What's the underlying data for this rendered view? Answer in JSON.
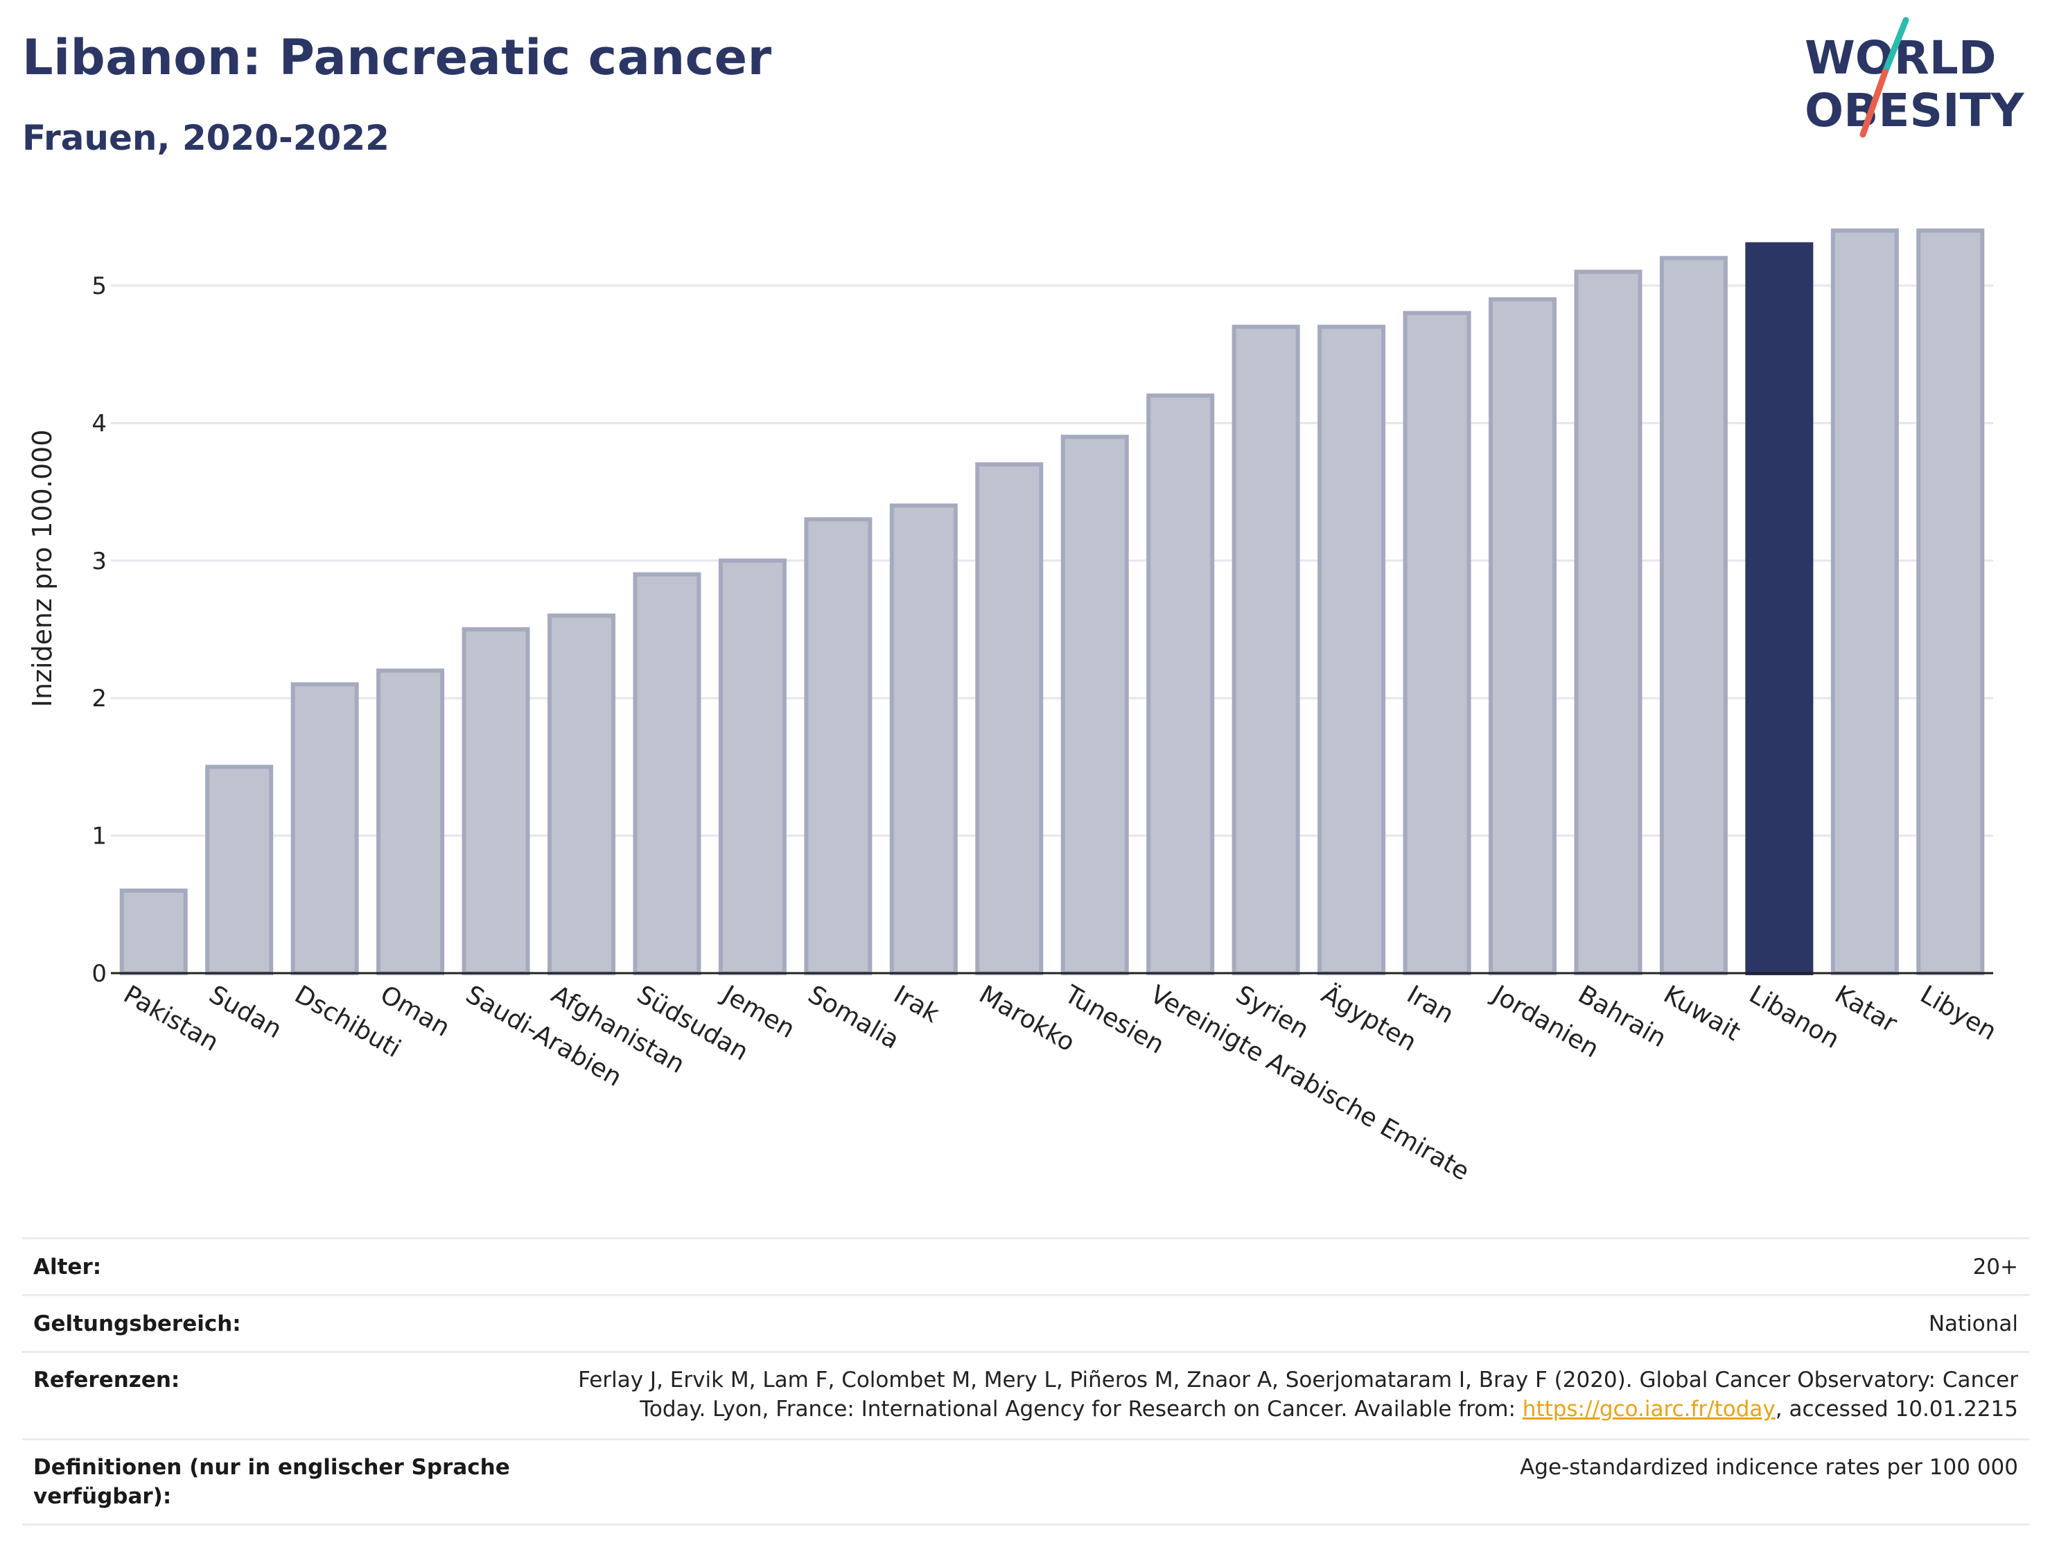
{
  "header": {
    "title": "Libanon: Pancreatic cancer",
    "subtitle": "Frauen, 2020-2022"
  },
  "logo": {
    "line1": "WORLD",
    "line2": "OBESITY",
    "colors": {
      "text": "#2b3664",
      "slash_top": "#2bbbad",
      "slash_bottom": "#e8604c"
    }
  },
  "colors": {
    "bar_fill": "#bfc2cf",
    "bar_stroke": "#a5aabf",
    "highlight": "#2b3664",
    "grid": "#e6e6ee",
    "axis": "#222222"
  },
  "chart_data": {
    "type": "bar",
    "ylabel": "Inzidenz pro 100.000",
    "ylim": [
      0,
      5.5
    ],
    "yticks": [
      0,
      1,
      2,
      3,
      4,
      5
    ],
    "grid": true,
    "highlight_category": "Libanon",
    "categories": [
      "Pakistan",
      "Sudan",
      "Dschibuti",
      "Oman",
      "Saudi-Arabien",
      "Afghanistan",
      "Südsudan",
      "Jemen",
      "Somalia",
      "Irak",
      "Marokko",
      "Tunesien",
      "Vereinigte Arabische Emirate",
      "Syrien",
      "Ägypten",
      "Iran",
      "Jordanien",
      "Bahrain",
      "Kuwait",
      "Libanon",
      "Katar",
      "Libyen"
    ],
    "values": [
      0.6,
      1.5,
      2.1,
      2.2,
      2.5,
      2.6,
      2.9,
      3.0,
      3.3,
      3.4,
      3.7,
      3.9,
      4.2,
      4.7,
      4.7,
      4.8,
      4.9,
      5.1,
      5.2,
      5.3,
      5.4,
      5.4
    ]
  },
  "info": {
    "age_label": "Alter:",
    "age_value": "20+",
    "scope_label": "Geltungsbereich:",
    "scope_value": "National",
    "refs_label": "Referenzen:",
    "refs_line1": "Ferlay J, Ervik M, Lam F, Colombet M, Mery L, Piñeros M, Znaor A, Soerjomataram I, Bray F (2020). Global Cancer Observatory: Cancer",
    "refs_line2_pre": "Today. Lyon, France: International Agency for Research on Cancer. Available from: ",
    "refs_link": "https://gco.iarc.fr/today",
    "refs_line2_post": ", accessed 10.01.2215",
    "defs_label": "Definitionen (nur in englischer Sprache verfügbar):",
    "defs_value": "Age-standardized indicence rates per 100 000"
  }
}
